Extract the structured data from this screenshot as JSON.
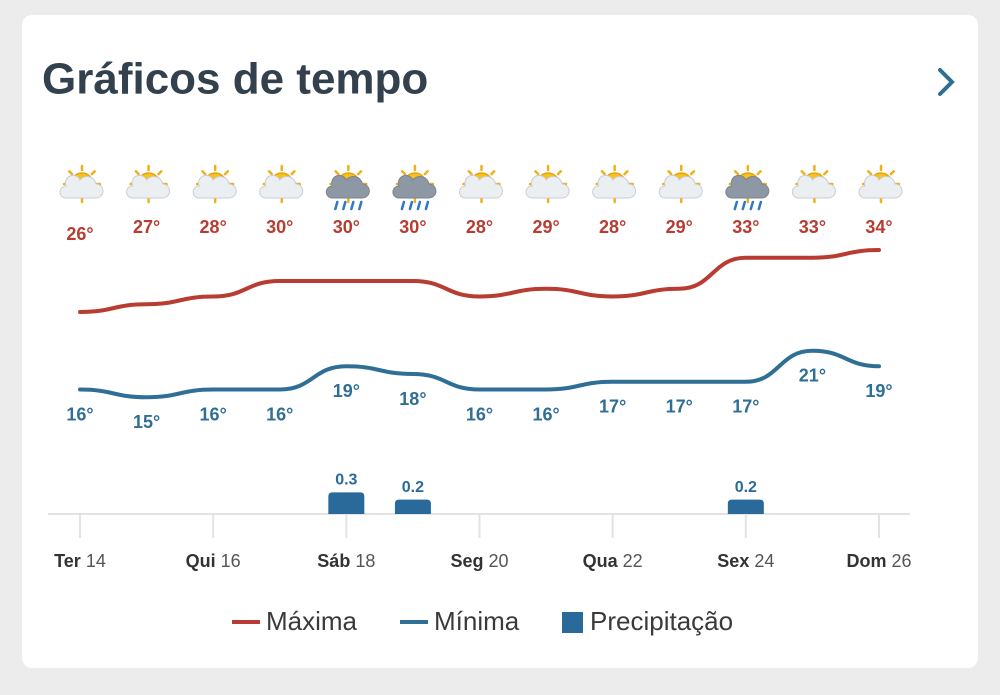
{
  "chart_data": {
    "type": "line",
    "title": "Gráficos de tempo",
    "categories": [
      "Ter 14",
      null,
      "Qui 16",
      null,
      "Sáb 18",
      null,
      "Seg 20",
      null,
      "Qua 22",
      null,
      "Sex 24",
      null,
      "Dom 26"
    ],
    "series": [
      {
        "name": "Máxima",
        "type": "line",
        "color": "#b83c31",
        "values": [
          26,
          27,
          28,
          30,
          30,
          30,
          28,
          29,
          28,
          29,
          33,
          33,
          34
        ],
        "value_labels": [
          "26°",
          "27°",
          "28°",
          "30°",
          "30°",
          "30°",
          "28°",
          "29°",
          "28°",
          "29°",
          "33°",
          "33°",
          "34°"
        ]
      },
      {
        "name": "Mínima",
        "type": "line",
        "color": "#2f6f95",
        "values": [
          16,
          15,
          16,
          16,
          19,
          18,
          16,
          16,
          17,
          17,
          17,
          21,
          19
        ],
        "value_labels": [
          "16°",
          "15°",
          "16°",
          "16°",
          "19°",
          "18°",
          "16°",
          "16°",
          "17°",
          "17°",
          "17°",
          "21°",
          "19°"
        ]
      },
      {
        "name": "Precipitação",
        "type": "bar",
        "axis": "y2",
        "color": "#2a6a9a",
        "values": [
          null,
          null,
          null,
          null,
          0.3,
          0.2,
          null,
          null,
          null,
          null,
          0.2,
          null,
          null
        ]
      }
    ],
    "ylim": [
      12,
      36
    ],
    "y2lim": [
      0,
      0.5
    ]
  }
}
